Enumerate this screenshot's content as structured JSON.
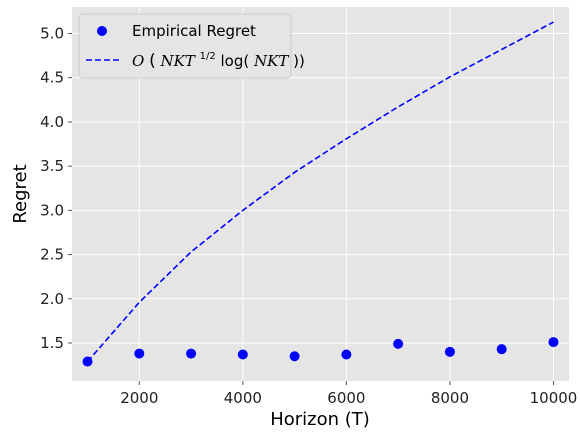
{
  "chart_data": {
    "type": "scatter",
    "xlabel": "Horizon (T)",
    "ylabel": "Regret",
    "xlim": [
      700,
      10300
    ],
    "ylim": [
      1.07,
      5.3
    ],
    "xticks": [
      2000,
      4000,
      6000,
      8000,
      10000
    ],
    "xtick_labels": [
      "2000",
      "4000",
      "6000",
      "8000",
      "10000"
    ],
    "yticks": [
      1.5,
      2.0,
      2.5,
      3.0,
      3.5,
      4.0,
      4.5,
      5.0
    ],
    "ytick_labels": [
      "1.5",
      "2.0",
      "2.5",
      "3.0",
      "3.5",
      "4.0",
      "4.5",
      "5.0"
    ],
    "grid": true,
    "legend_position": "top-left",
    "series": [
      {
        "name": "Empirical Regret",
        "style": "markers",
        "color": "#0000ff",
        "x": [
          1000,
          2000,
          3000,
          4000,
          5000,
          6000,
          7000,
          8000,
          9000,
          10000
        ],
        "y": [
          1.29,
          1.38,
          1.38,
          1.37,
          1.35,
          1.37,
          1.49,
          1.4,
          1.43,
          1.51
        ]
      },
      {
        "name": "O(NKT^{1/2}log(NKT))",
        "style": "dashed-line",
        "color": "#0000ff",
        "x": [
          1000,
          2000,
          3000,
          4000,
          5000,
          6000,
          7000,
          8000,
          9000,
          10000
        ],
        "y": [
          1.29,
          1.96,
          2.53,
          3.0,
          3.43,
          3.81,
          4.17,
          4.51,
          4.82,
          5.13
        ]
      }
    ]
  },
  "legend": {
    "empirical_label": "Empirical Regret",
    "bound_prefix": "O",
    "bound_open": "(",
    "bound_nkt": "NKT",
    "bound_exp": "1/2",
    "bound_log": "log(",
    "bound_nkt2": "NKT",
    "bound_close": "))"
  },
  "colors": {
    "plot_background": "#e5e5e5",
    "grid": "#ffffff",
    "series": "#0000ff"
  }
}
